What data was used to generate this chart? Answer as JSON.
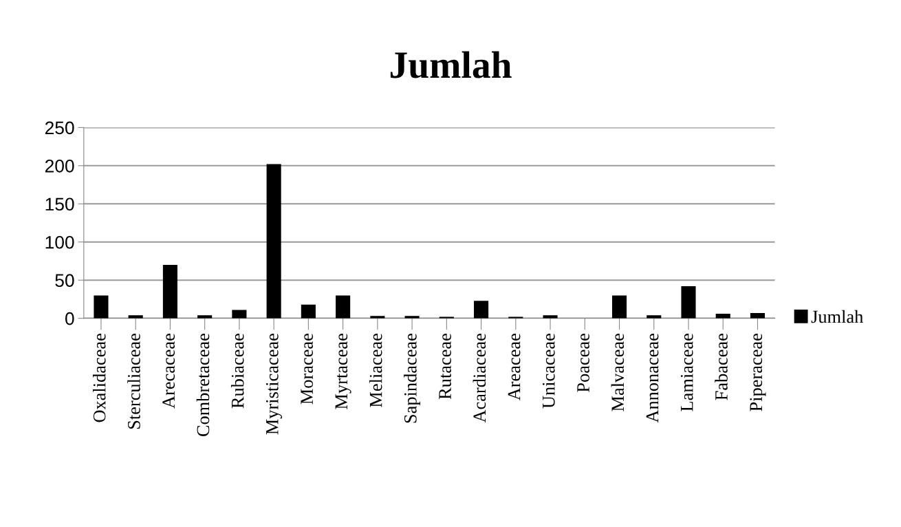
{
  "chart_data": {
    "type": "bar",
    "title": "Jumlah",
    "categories": [
      "Oxalidaceae",
      "Sterculiaceae",
      "Arecaceae",
      "Combretaceae",
      "Rubiaceae",
      "Myristicaceae",
      "Moraceae",
      "Myrtaceae",
      "Meliaceae",
      "Sapindaceae",
      "Rutaceae",
      "Acardiaceae",
      "Areaceae",
      "Unicaceae",
      "Poaceae",
      "Malvaceae",
      "Annonaceae",
      "Lamiaceae",
      "Fabaceae",
      "Piperaceae"
    ],
    "series": [
      {
        "name": "Jumlah",
        "color": "#000000",
        "values": [
          30,
          4,
          70,
          4,
          11,
          202,
          18,
          30,
          3,
          3,
          2,
          23,
          2,
          4,
          0,
          30,
          4,
          42,
          6,
          7
        ]
      }
    ],
    "ylim": [
      0,
      250
    ],
    "yticks": [
      0,
      50,
      100,
      150,
      200,
      250
    ],
    "grid": "y",
    "legend": "right"
  }
}
